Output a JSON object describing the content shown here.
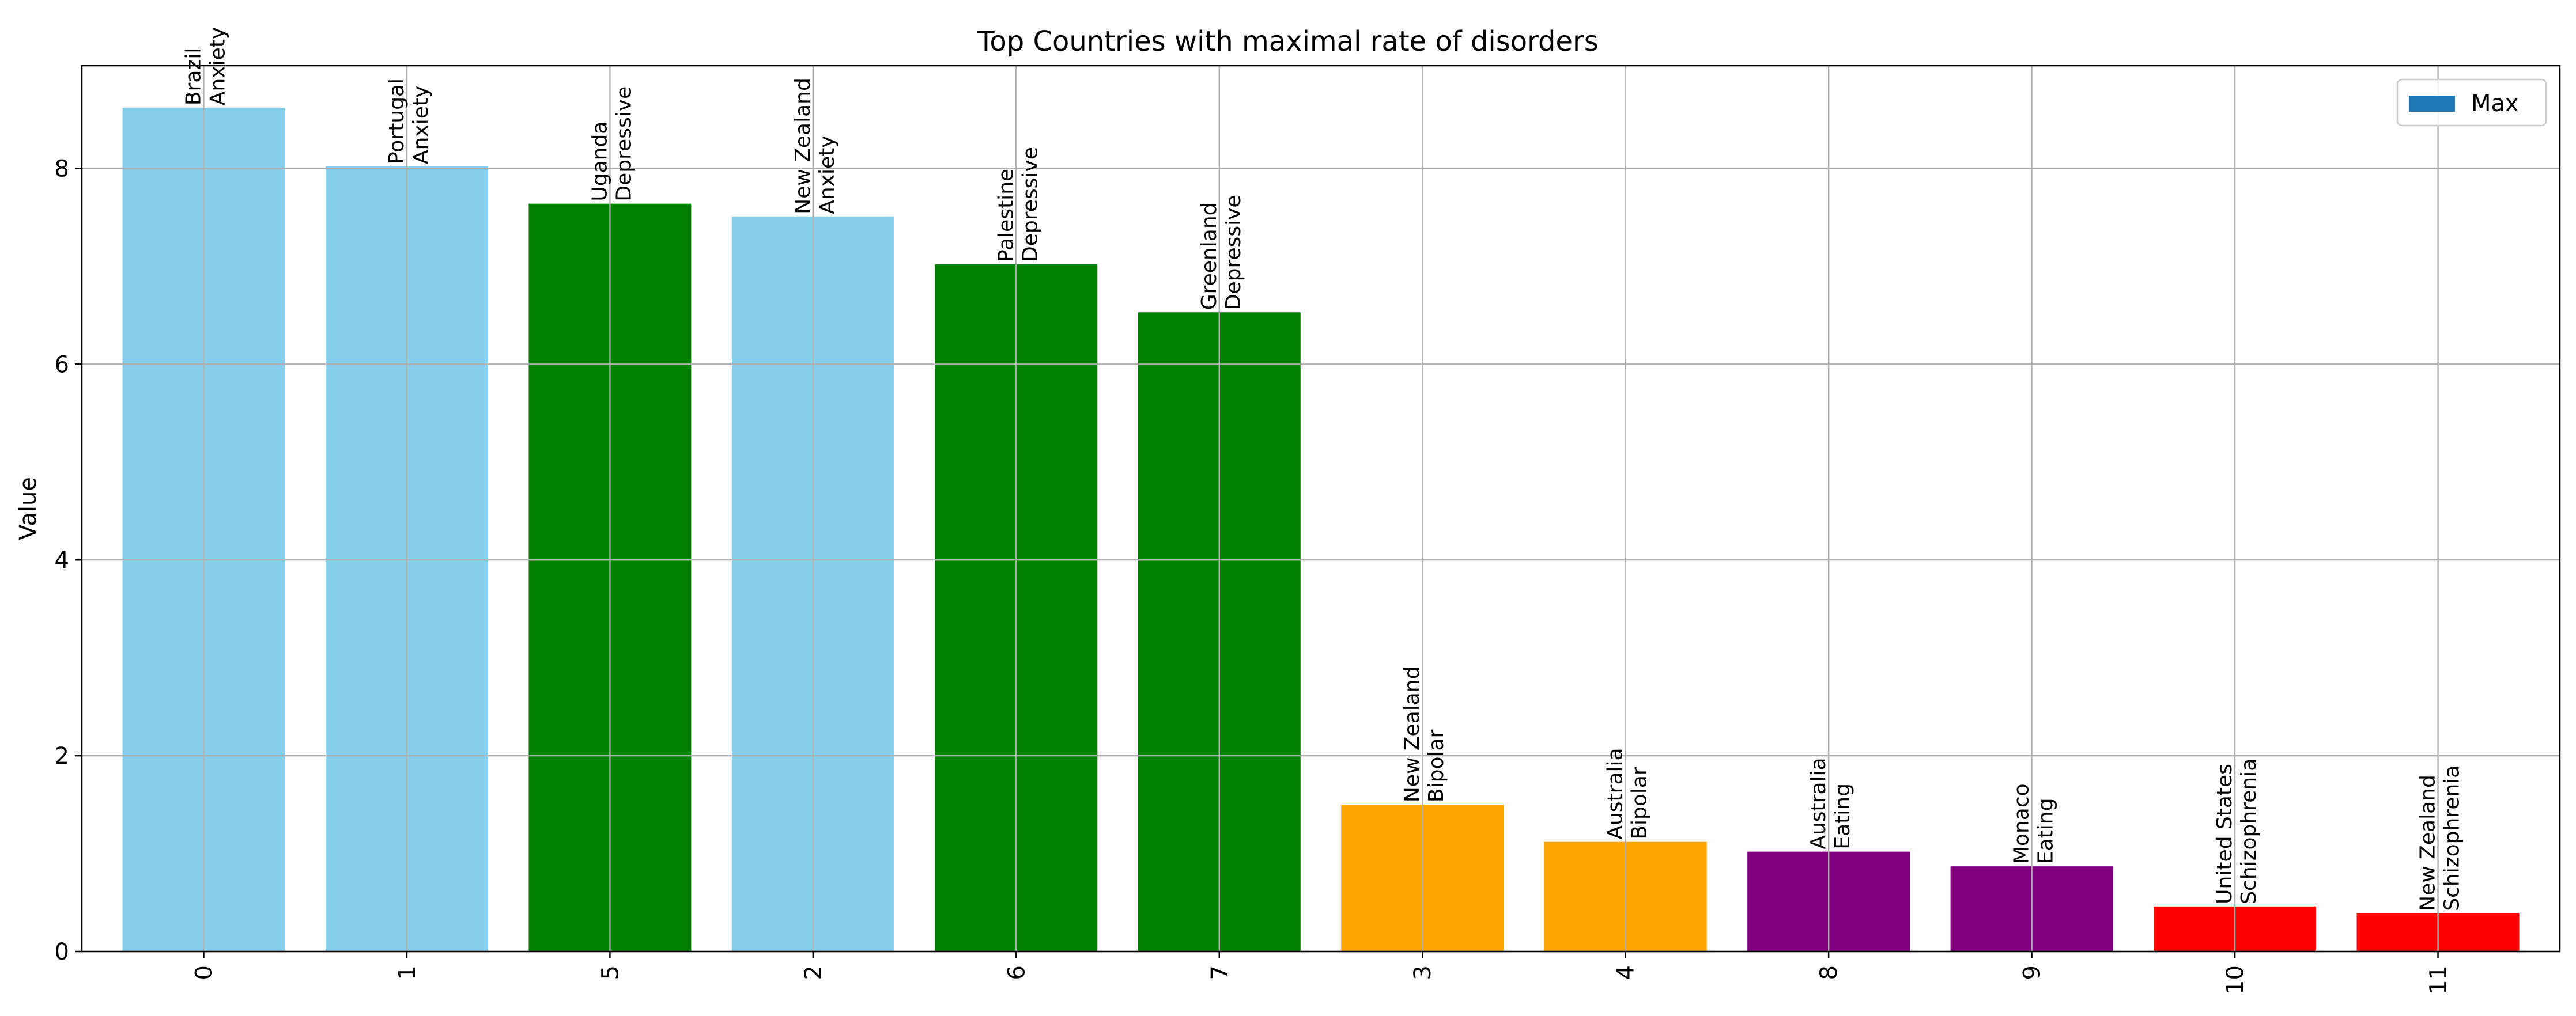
{
  "chart_data": {
    "type": "bar",
    "title": "Top Countries with maximal rate of disorders",
    "xlabel": "",
    "ylabel": "Value",
    "ylim": [
      0,
      9.05
    ],
    "yticks": [
      "0",
      "2",
      "4",
      "6",
      "8"
    ],
    "grid": true,
    "legend": {
      "placement": "top-right",
      "entries": [
        {
          "label": "Max",
          "color": "#1f77b4"
        }
      ]
    },
    "categories": [
      "0",
      "1",
      "5",
      "2",
      "6",
      "7",
      "3",
      "4",
      "8",
      "9",
      "10",
      "11"
    ],
    "values": [
      8.62,
      8.02,
      7.64,
      7.51,
      7.02,
      6.53,
      1.5,
      1.12,
      1.02,
      0.87,
      0.46,
      0.39
    ],
    "countries": [
      "Brazil",
      "Portugal",
      "Uganda",
      "New Zealand",
      "Palestine",
      "Greenland",
      "New Zealand",
      "Australia",
      "Australia",
      "Monaco",
      "United States",
      "New Zealand"
    ],
    "disorders": [
      "Anxiety",
      "Anxiety",
      "Depressive",
      "Anxiety",
      "Depressive",
      "Depressive",
      "Bipolar",
      "Bipolar",
      "Eating",
      "Eating",
      "Schizophrenia",
      "Schizophrenia"
    ],
    "colors": [
      "#87ceeb",
      "#87ceeb",
      "#008000",
      "#87ceeb",
      "#008000",
      "#008000",
      "#ffa500",
      "#ffa500",
      "#800080",
      "#800080",
      "#ff0000",
      "#ff0000"
    ]
  }
}
